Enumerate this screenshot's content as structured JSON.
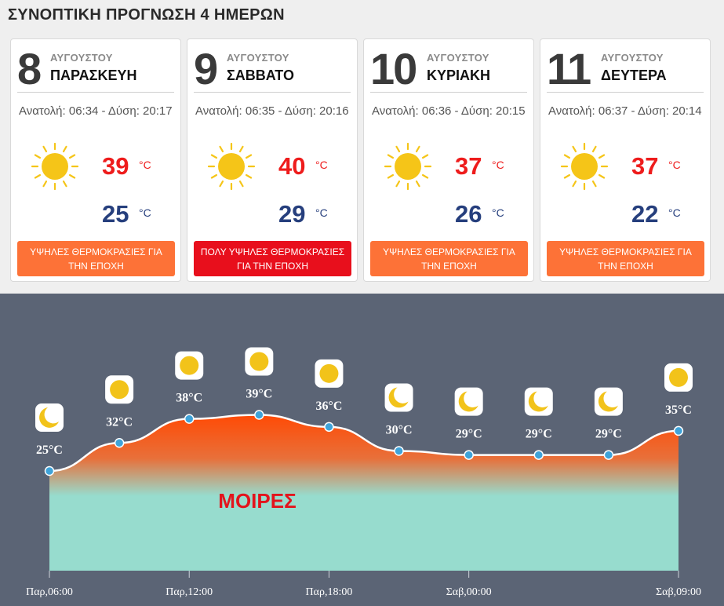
{
  "title": "ΣΥΝΟΠΤΙΚΗ ΠΡΟΓΝΩΣΗ 4 ΗΜΕΡΩΝ",
  "days": [
    {
      "num": "8",
      "month": "ΑΥΓΟΥΣΤΟΥ",
      "weekday": "ΠΑΡΑΣΚΕΥΗ",
      "sun": "Ανατολή: 06:34 - Δύση: 20:17",
      "max": "39",
      "min": "25",
      "unit": "°C",
      "warning": "ΥΨΗΛΕΣ ΘΕΡΜΟΚΡΑΣΙΕΣ ΓΙΑ ΤΗΝ ΕΠΟΧΗ",
      "warning_color": "#fd7237",
      "icon": "sun-icon"
    },
    {
      "num": "9",
      "month": "ΑΥΓΟΥΣΤΟΥ",
      "weekday": "ΣΑΒΒΑΤΟ",
      "sun": "Ανατολή: 06:35 - Δύση: 20:16",
      "max": "40",
      "min": "29",
      "unit": "°C",
      "warning": "ΠΟΛΥ ΥΨΗΛΕΣ ΘΕΡΜΟΚΡΑΣΙΕΣ ΓΙΑ ΤΗΝ ΕΠΟΧΗ",
      "warning_color": "#e80f1c",
      "icon": "sun-icon"
    },
    {
      "num": "10",
      "month": "ΑΥΓΟΥΣΤΟΥ",
      "weekday": "ΚΥΡΙΑΚΗ",
      "sun": "Ανατολή: 06:36 - Δύση: 20:15",
      "max": "37",
      "min": "26",
      "unit": "°C",
      "warning": "ΥΨΗΛΕΣ ΘΕΡΜΟΚΡΑΣΙΕΣ ΓΙΑ ΤΗΝ ΕΠΟΧΗ",
      "warning_color": "#fd7237",
      "icon": "sun-icon"
    },
    {
      "num": "11",
      "month": "ΑΥΓΟΥΣΤΟΥ",
      "weekday": "ΔΕΥΤΕΡΑ",
      "sun": "Ανατολή: 06:37 - Δύση: 20:14",
      "max": "37",
      "min": "22",
      "unit": "°C",
      "warning": "ΥΨΗΛΕΣ ΘΕΡΜΟΚΡΑΣΙΕΣ ΓΙΑ ΤΗΝ ΕΠΟΧΗ",
      "warning_color": "#fd7237",
      "icon": "sun-icon"
    }
  ],
  "chart_data": {
    "type": "area",
    "watermark": "ΜΟΙΡΕΣ",
    "unit": "°C",
    "points": [
      {
        "temp": 25,
        "label": "25°C",
        "icon": "moon-icon"
      },
      {
        "temp": 32,
        "label": "32°C",
        "icon": "sun-icon"
      },
      {
        "temp": 38,
        "label": "38°C",
        "icon": "sun-icon"
      },
      {
        "temp": 39,
        "label": "39°C",
        "icon": "sun-icon"
      },
      {
        "temp": 36,
        "label": "36°C",
        "icon": "sun-icon"
      },
      {
        "temp": 30,
        "label": "30°C",
        "icon": "moon-icon"
      },
      {
        "temp": 29,
        "label": "29°C",
        "icon": "moon-icon"
      },
      {
        "temp": 29,
        "label": "29°C",
        "icon": "moon-icon"
      },
      {
        "temp": 29,
        "label": "29°C",
        "icon": "moon-icon"
      },
      {
        "temp": 35,
        "label": "35°C",
        "icon": "sun-icon"
      }
    ],
    "x_ticks": [
      "Παρ,06:00",
      "Παρ,12:00",
      "Παρ,18:00",
      "Σαβ,00:00",
      "Σαβ,09:00"
    ],
    "x_tick_positions": [
      0,
      2,
      4,
      6,
      9
    ],
    "colors": {
      "line": "#ffffff",
      "fill_top": "#ff4a05",
      "fill_bottom": "#97dcce",
      "marker": "#3fa3d9",
      "watermark": "#e3141c",
      "label": "#ffffff"
    }
  }
}
